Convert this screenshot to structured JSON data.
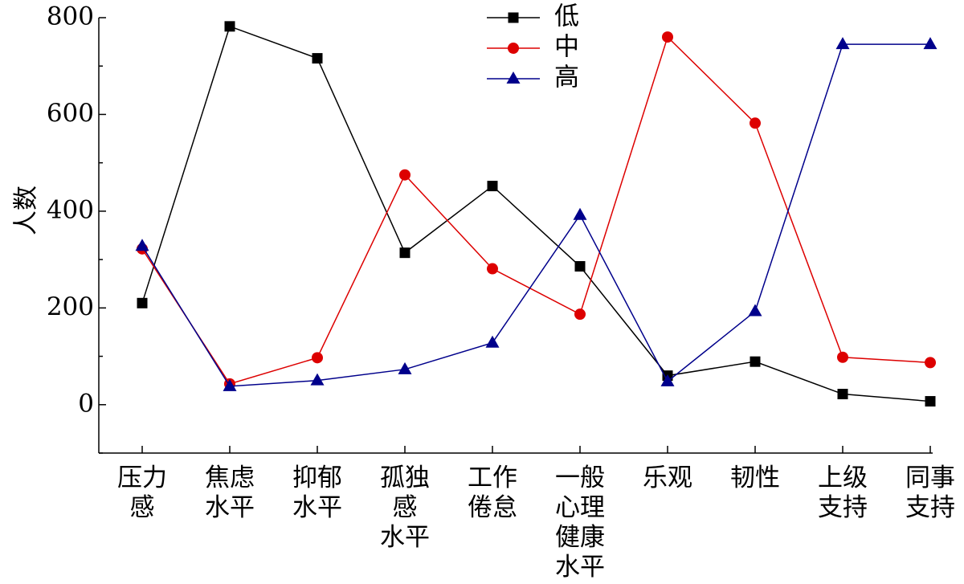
{
  "chart_data": {
    "type": "line",
    "categories": [
      [
        "压力",
        "感"
      ],
      [
        "焦虑",
        "水平"
      ],
      [
        "抑郁",
        "水平"
      ],
      [
        "孤独",
        "感",
        "水平"
      ],
      [
        "工作",
        "倦怠"
      ],
      [
        "一般",
        "心理",
        "健康",
        "水平"
      ],
      [
        "乐观"
      ],
      [
        "韧性"
      ],
      [
        "上级",
        "支持"
      ],
      [
        "同事",
        "支持"
      ]
    ],
    "series": [
      {
        "name": "低",
        "color": "#000000",
        "marker": "square",
        "values": [
          210,
          782,
          716,
          314,
          452,
          286,
          60,
          89,
          22,
          7
        ]
      },
      {
        "name": "中",
        "color": "#dd0000",
        "marker": "circle",
        "values": [
          322,
          43,
          97,
          475,
          281,
          187,
          760,
          582,
          98,
          87
        ]
      },
      {
        "name": "高",
        "color": "#00008b",
        "marker": "triangle",
        "values": [
          328,
          38,
          50,
          73,
          128,
          392,
          48,
          193,
          745,
          745
        ]
      }
    ],
    "ylabel": "人数",
    "xlabel": "",
    "ylim": [
      -100,
      800
    ],
    "yticks": [
      0,
      200,
      400,
      600,
      800
    ],
    "legend_position": "top-center",
    "grid": false
  }
}
